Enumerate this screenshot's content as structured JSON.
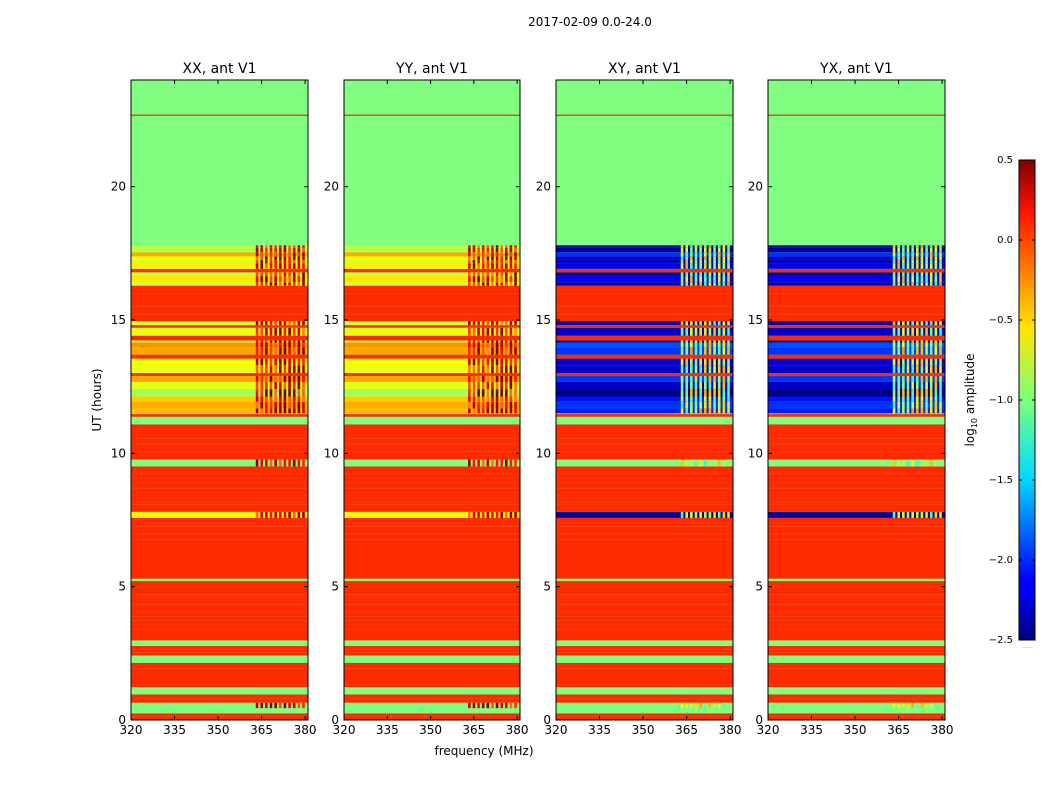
{
  "figure_title": "2017-02-09 0.0-24.0",
  "ylabel": "UT (hours)",
  "xlabel": "frequency (MHz)",
  "colorbar": {
    "label_prefix": "log",
    "label_sub": "10",
    "label_suffix": " amplitude",
    "ticks": [
      "0.5",
      "0.0",
      "−0.5",
      "−1.0",
      "−1.5",
      "−2.0",
      "−2.5"
    ],
    "tick_values": [
      0.5,
      0.0,
      -0.5,
      -1.0,
      -1.5,
      -2.0,
      -2.5
    ],
    "range": [
      -2.5,
      0.5
    ],
    "colormap": "jet",
    "bottom_note": "......"
  },
  "chart_data": [
    {
      "type": "heatmap",
      "title": "XX, ant V1",
      "xlim": [
        320,
        381
      ],
      "ylim": [
        0,
        24
      ],
      "xticks": [
        "320",
        "335",
        "350",
        "365",
        "380"
      ],
      "xtick_values": [
        320,
        335,
        350,
        365,
        380
      ],
      "yticks": [
        "0",
        "5",
        "10",
        "15",
        "20"
      ],
      "ytick_values": [
        0,
        5,
        10,
        15,
        20
      ],
      "background_value": -1.0,
      "flagged_value": 0.0,
      "active_band_value": -0.6,
      "rfi_freq_start": 363,
      "rfi_value": 0.2,
      "lowband_value": -0.6
    },
    {
      "type": "heatmap",
      "title": "YY, ant V1",
      "xlim": [
        320,
        381
      ],
      "ylim": [
        0,
        24
      ],
      "xticks": [
        "320",
        "335",
        "350",
        "365",
        "380"
      ],
      "xtick_values": [
        320,
        335,
        350,
        365,
        380
      ],
      "yticks": [
        "0",
        "5",
        "10",
        "15",
        "20"
      ],
      "ytick_values": [
        0,
        5,
        10,
        15,
        20
      ],
      "background_value": -1.0,
      "flagged_value": 0.0,
      "active_band_value": -0.6,
      "rfi_freq_start": 363,
      "rfi_value": 0.15,
      "lowband_value": -0.6
    },
    {
      "type": "heatmap",
      "title": "XY, ant V1",
      "xlim": [
        320,
        381
      ],
      "ylim": [
        0,
        24
      ],
      "xticks": [
        "320",
        "335",
        "350",
        "365",
        "380"
      ],
      "xtick_values": [
        320,
        335,
        350,
        365,
        380
      ],
      "yticks": [
        "0",
        "5",
        "10",
        "15",
        "20"
      ],
      "ytick_values": [
        0,
        5,
        10,
        15,
        20
      ],
      "background_value": -1.0,
      "flagged_value": 0.0,
      "active_band_value": -2.2,
      "rfi_freq_start": 363,
      "rfi_value": -0.8,
      "lowband_value": -2.4
    },
    {
      "type": "heatmap",
      "title": "YX, ant V1",
      "xlim": [
        320,
        381
      ],
      "ylim": [
        0,
        24
      ],
      "xticks": [
        "320",
        "335",
        "350",
        "365",
        "380"
      ],
      "xtick_values": [
        320,
        335,
        350,
        365,
        380
      ],
      "yticks": [
        "0",
        "5",
        "10",
        "15",
        "20"
      ],
      "ytick_values": [
        0,
        5,
        10,
        15,
        20
      ],
      "background_value": -1.0,
      "flagged_value": 0.0,
      "active_band_value": -2.2,
      "rfi_freq_start": 363,
      "rfi_value": -0.8,
      "lowband_value": -2.4
    }
  ],
  "time_segments": [
    {
      "from": 0.0,
      "to": 5.3,
      "kind": "striped"
    },
    {
      "from": 5.3,
      "to": 6.6,
      "kind": "flagged"
    },
    {
      "from": 6.6,
      "to": 11.5,
      "kind": "striped"
    },
    {
      "from": 11.5,
      "to": 15.5,
      "kind": "active"
    },
    {
      "from": 15.5,
      "to": 16.0,
      "kind": "flagged"
    },
    {
      "from": 16.0,
      "to": 17.8,
      "kind": "active"
    },
    {
      "from": 17.8,
      "to": 24.0,
      "kind": "background"
    }
  ],
  "flag_line_hour": 22.7
}
